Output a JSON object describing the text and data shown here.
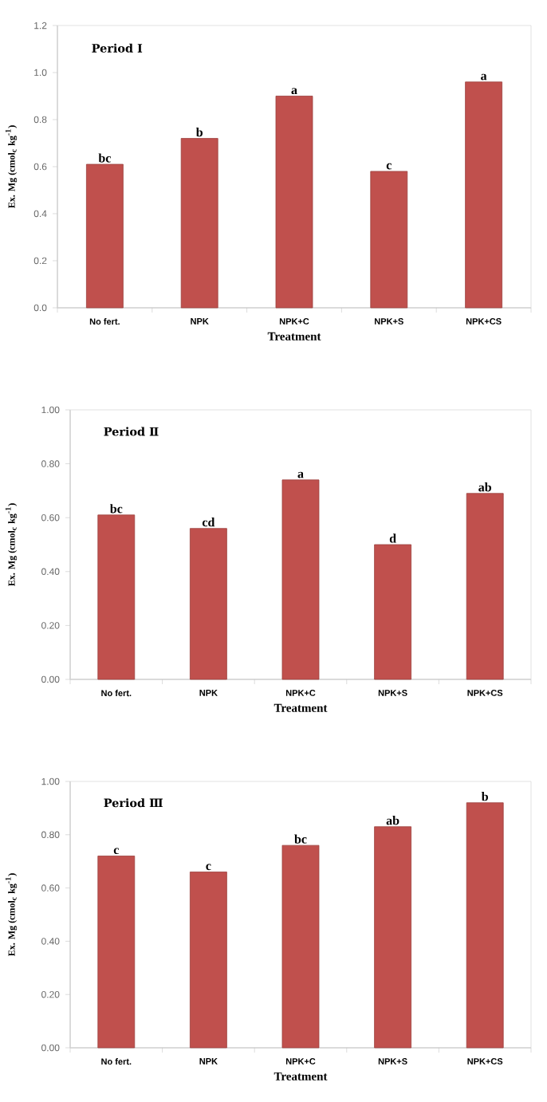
{
  "chart_data": [
    {
      "type": "bar",
      "title": "Period Ⅰ",
      "xlabel": "Treatment",
      "ylabel": "Ex. Mg (cmol$_{c}$ kg$^{-1}$)",
      "categories": [
        "No fert.",
        "NPK",
        "NPK+C",
        "NPK+S",
        "NPK+CS"
      ],
      "values": [
        0.61,
        0.72,
        0.9,
        0.58,
        0.96
      ],
      "color": "#c0504d",
      "ylim": [
        0,
        1.2
      ],
      "yticks": [
        {
          "value": 0,
          "label": "0.0"
        },
        0.2,
        0.4,
        0.6,
        0.8,
        {
          "value": 1,
          "label": "1.0"
        },
        1.2
      ],
      "annotations": [
        {
          "text": "bc",
          "x": "No fert.",
          "y": 0.61
        },
        {
          "text": "b",
          "x": "NPK",
          "y": 0.72
        },
        {
          "text": "a",
          "x": "NPK+C",
          "y": 0.9
        },
        {
          "text": "c",
          "x": "NPK+S",
          "y": 0.58
        },
        {
          "text": "a",
          "x": "NPK+CS",
          "y": 0.96
        }
      ]
    },
    {
      "type": "bar",
      "title": "Period Ⅱ",
      "xlabel": "Treatment",
      "ylabel": "Ex. Mg (cmol$_{c}$ kg$^{-1}$)",
      "categories": [
        "No fert.",
        "NPK",
        "NPK+C",
        "NPK+S",
        "NPK+CS"
      ],
      "values": [
        0.61,
        0.56,
        0.74,
        0.5,
        0.69
      ],
      "color": "#c0504d",
      "ylim": [
        0,
        1
      ],
      "yticks": [
        {
          "value": 0,
          "label": "0.00"
        },
        {
          "value": 0.2,
          "label": "0.20"
        },
        {
          "value": 0.4,
          "label": "0.40"
        },
        {
          "value": 0.6,
          "label": "0.60"
        },
        {
          "value": 0.8,
          "label": "0.80"
        },
        {
          "value": 1,
          "label": "1.00"
        }
      ],
      "annotations": [
        {
          "text": "bc",
          "x": "No fert.",
          "y": 0.61
        },
        {
          "text": "cd",
          "x": "NPK",
          "y": 0.56
        },
        {
          "text": "a",
          "x": "NPK+C",
          "y": 0.74
        },
        {
          "text": "d",
          "x": "NPK+S",
          "y": 0.5
        },
        {
          "text": "ab",
          "x": "NPK+CS",
          "y": 0.69
        }
      ]
    },
    {
      "type": "bar",
      "title": "Period Ⅲ",
      "xlabel": "Treatment",
      "ylabel": "Ex. Mg (cmol$_{c}$ kg$^{-1}$)",
      "categories": [
        "No fert.",
        "NPK",
        "NPK+C",
        "NPK+S",
        "NPK+CS"
      ],
      "values": [
        0.72,
        0.66,
        0.76,
        0.83,
        0.92
      ],
      "color": "#c0504d",
      "ylim": [
        0,
        1
      ],
      "yticks": [
        {
          "value": 0,
          "label": "0.00"
        },
        {
          "value": 0.2,
          "label": "0.20"
        },
        {
          "value": 0.4,
          "label": "0.40"
        },
        {
          "value": 0.6,
          "label": "0.60"
        },
        {
          "value": 0.8,
          "label": "0.80"
        },
        {
          "value": 1,
          "label": "1.00"
        }
      ],
      "annotations": [
        {
          "text": "c",
          "x": "No fert.",
          "y": 0.72
        },
        {
          "text": "c",
          "x": "NPK",
          "y": 0.66
        },
        {
          "text": "bc",
          "x": "NPK+C",
          "y": 0.76
        },
        {
          "text": "ab",
          "x": "NPK+S",
          "y": 0.83
        },
        {
          "text": "b",
          "x": "NPK+CS",
          "y": 0.92
        }
      ]
    }
  ]
}
